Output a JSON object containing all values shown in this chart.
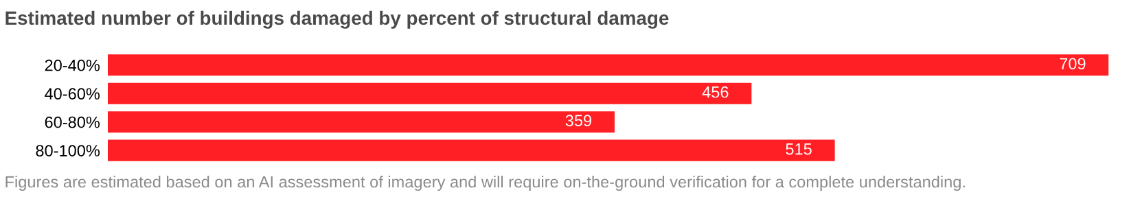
{
  "chart_data": {
    "type": "bar",
    "orientation": "horizontal",
    "title": "Estimated number of buildings damaged by percent of structural damage",
    "categories": [
      "20-40%",
      "40-60%",
      "60-80%",
      "80-100%"
    ],
    "values": [
      709,
      456,
      359,
      515
    ],
    "color": "#ff1f24",
    "data_labels": true,
    "annotations": [
      "Figures are estimated based on an AI assessment of imagery and will require on-the-ground verification for a complete understanding."
    ]
  }
}
